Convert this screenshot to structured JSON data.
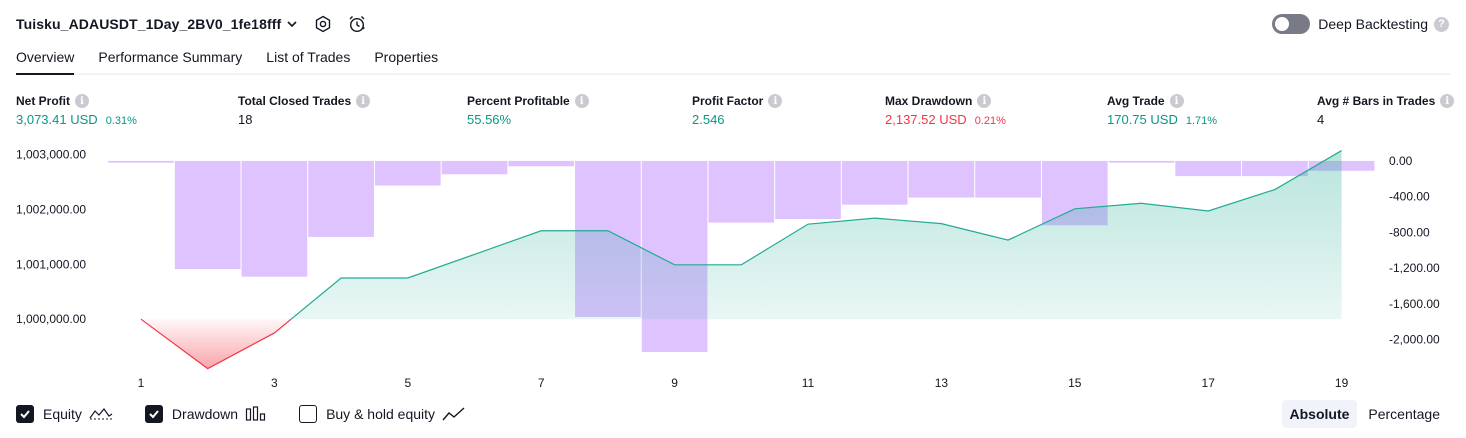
{
  "header": {
    "strategy_name": "Tuisku_ADAUSDT_1Day_2BV0_1fe18fff",
    "deep_backtesting_label": "Deep Backtesting",
    "deep_backtesting_enabled": false,
    "help_glyph": "?"
  },
  "tabs": [
    {
      "label": "Overview",
      "active": true
    },
    {
      "label": "Performance Summary",
      "active": false
    },
    {
      "label": "List of Trades",
      "active": false
    },
    {
      "label": "Properties",
      "active": false
    }
  ],
  "info_glyph": "i",
  "metrics": [
    {
      "title": "Net Profit",
      "value": "3,073.41",
      "unit": "USD",
      "pct": "0.31%",
      "color": "#089981"
    },
    {
      "title": "Total Closed Trades",
      "value": "18",
      "unit": "",
      "pct": "",
      "color": "#131722"
    },
    {
      "title": "Percent Profitable",
      "value": "55.56%",
      "unit": "",
      "pct": "",
      "color": "#089981"
    },
    {
      "title": "Profit Factor",
      "value": "2.546",
      "unit": "",
      "pct": "",
      "color": "#089981"
    },
    {
      "title": "Max Drawdown",
      "value": "2,137.52",
      "unit": "USD",
      "pct": "0.21%",
      "color": "#f23645"
    },
    {
      "title": "Avg Trade",
      "value": "170.75",
      "unit": "USD",
      "pct": "1.71%",
      "color": "#089981"
    },
    {
      "title": "Avg # Bars in Trades",
      "value": "4",
      "unit": "",
      "pct": "",
      "color": "#131722"
    }
  ],
  "chart_data": {
    "type": "line",
    "x": [
      1,
      2,
      3,
      4,
      5,
      6,
      7,
      8,
      9,
      10,
      11,
      12,
      13,
      14,
      15,
      16,
      17,
      18,
      19
    ],
    "x_ticks": [
      "1",
      "3",
      "5",
      "7",
      "9",
      "11",
      "13",
      "15",
      "17",
      "19"
    ],
    "left_axis": {
      "ticks": [
        "1,003,000.00",
        "1,002,000.00",
        "1,001,000.00",
        "1,000,000.00"
      ],
      "tick_values": [
        1003000,
        1002000,
        1001000,
        1000000
      ],
      "ylim": [
        999130,
        1003080
      ]
    },
    "right_axis": {
      "ticks": [
        "0.00",
        "-400.00",
        "-800.00",
        "-1,200.00",
        "-1,600.00",
        "-2,000.00"
      ],
      "tick_values": [
        0,
        -400,
        -800,
        -1200,
        -1600,
        -2000
      ],
      "ylim": [
        -2305,
        122
      ]
    },
    "series": [
      {
        "name": "Equity",
        "axis": "left",
        "baseline": 1000000,
        "values": [
          1000000,
          999100,
          999750,
          1000750,
          1000750,
          1001180,
          1001610,
          1001610,
          1000990,
          1000990,
          1001730,
          1001840,
          1001740,
          1001440,
          1002010,
          1002110,
          1001970,
          1002360,
          1003070
        ],
        "color": "#22ab94",
        "fill_above_baseline": "#d4f0e7",
        "fill_below_baseline": "#f23645"
      },
      {
        "name": "Drawdown",
        "axis": "right",
        "type": "bar",
        "values": [
          -20,
          -1210,
          -1295,
          -850,
          -275,
          -150,
          -60,
          -1745,
          -2137.52,
          -690,
          -650,
          -490,
          -410,
          -410,
          -720,
          -20,
          -170,
          -170,
          -110
        ],
        "color": "#d9b8ff"
      }
    ]
  },
  "legend": {
    "items": [
      {
        "label": "Equity",
        "checked": true,
        "icon": "equity-line-icon"
      },
      {
        "label": "Drawdown",
        "checked": true,
        "icon": "drawdown-bars-icon"
      },
      {
        "label": "Buy & hold equity",
        "checked": false,
        "icon": "buy-hold-line-icon"
      }
    ]
  },
  "display_modes": [
    {
      "label": "Absolute",
      "active": true
    },
    {
      "label": "Percentage",
      "active": false
    }
  ]
}
